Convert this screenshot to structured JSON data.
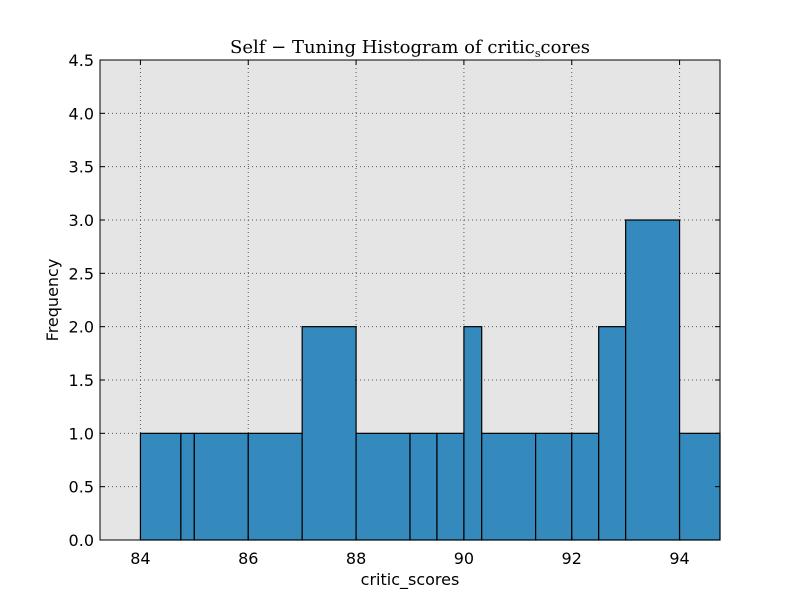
{
  "chart_data": {
    "type": "bar",
    "title": "Self − Tuning Histogram of critic",
    "title_subscript": "s",
    "title_suffix": "cores",
    "xlabel": "critic_scores",
    "ylabel": "Frequency",
    "xlim": [
      83.25,
      94.75
    ],
    "ylim": [
      0,
      4.5
    ],
    "xticks": [
      84,
      86,
      88,
      90,
      92,
      94
    ],
    "yticks": [
      "0.0",
      "0.5",
      "1.0",
      "1.5",
      "2.0",
      "2.5",
      "3.0",
      "3.5",
      "4.0",
      "4.5"
    ],
    "grid": true,
    "bins": [
      {
        "left": 84,
        "right": 84.75,
        "value": 1
      },
      {
        "left": 84.75,
        "right": 85,
        "value": 1
      },
      {
        "left": 85,
        "right": 86,
        "value": 1
      },
      {
        "left": 86,
        "right": 87,
        "value": 1
      },
      {
        "left": 87,
        "right": 88,
        "value": 2
      },
      {
        "left": 88,
        "right": 89,
        "value": 1
      },
      {
        "left": 89,
        "right": 89.5,
        "value": 1
      },
      {
        "left": 89.5,
        "right": 90,
        "value": 1
      },
      {
        "left": 90,
        "right": 90.33,
        "value": 2
      },
      {
        "left": 90.33,
        "right": 91.33,
        "value": 1
      },
      {
        "left": 91.33,
        "right": 92,
        "value": 1
      },
      {
        "left": 92,
        "right": 92.5,
        "value": 1
      },
      {
        "left": 92.5,
        "right": 93,
        "value": 2
      },
      {
        "left": 93,
        "right": 94,
        "value": 3
      },
      {
        "left": 94,
        "right": 94.75,
        "value": 1
      }
    ],
    "colors": {
      "bar_fill": "#348abd",
      "bar_edge": "#000000",
      "plot_bg": "#e5e5e5",
      "grid": "#555555"
    }
  }
}
